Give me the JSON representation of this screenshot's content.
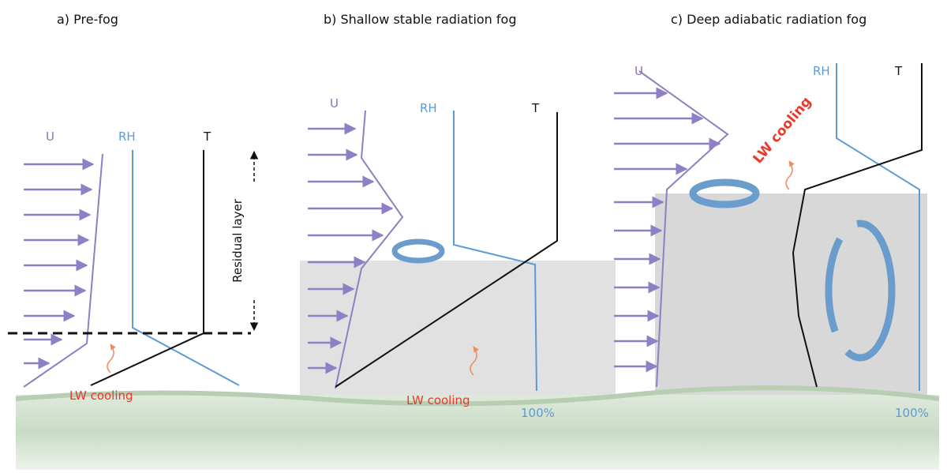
{
  "panels": [
    {
      "title": "a) Pre-fog",
      "u_label": "U",
      "rh_label": "RH",
      "t_label": "T",
      "cooling_label": "LW cooling",
      "layer_label": "Residual layer"
    },
    {
      "title": "b) Shallow stable radiation fog",
      "u_label": "U",
      "rh_label": "RH",
      "t_label": "T",
      "cooling_label": "LW cooling",
      "surface_rh": "100%"
    },
    {
      "title": "c) Deep adiabatic radiation fog",
      "u_label": "U",
      "rh_label": "RH",
      "t_label": "T",
      "cooling_label": "LW cooling",
      "surface_rh": "100%"
    }
  ]
}
